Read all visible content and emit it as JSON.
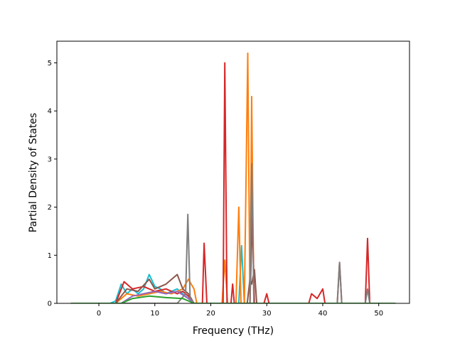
{
  "chart_data": {
    "type": "line",
    "title": "",
    "xlabel": "Frequency (THz)",
    "ylabel": "Partial Density of States",
    "xlim": [
      -7.5,
      55.5
    ],
    "ylim": [
      0,
      5.45
    ],
    "xticks": [
      0,
      10,
      20,
      30,
      40,
      50
    ],
    "yticks": [
      0,
      1,
      2,
      3,
      4,
      5
    ],
    "grid": false,
    "legend": "none",
    "colors": [
      "#1f77b4",
      "#ff7f0e",
      "#2ca02c",
      "#d62728",
      "#9467bd",
      "#8c564b",
      "#e377c2",
      "#7f7f7f",
      "#bcbd22",
      "#17becf"
    ],
    "series": [
      {
        "color": "#17becf",
        "points": [
          [
            -5,
            0
          ],
          [
            2,
            0
          ],
          [
            3,
            0.05
          ],
          [
            4,
            0.4
          ],
          [
            5,
            0.2
          ],
          [
            6,
            0.3
          ],
          [
            7,
            0.2
          ],
          [
            8,
            0.3
          ],
          [
            9,
            0.6
          ],
          [
            10,
            0.35
          ],
          [
            11,
            0.3
          ],
          [
            12,
            0.2
          ],
          [
            13,
            0.25
          ],
          [
            14,
            0.3
          ],
          [
            15,
            0.2
          ],
          [
            16,
            0.1
          ],
          [
            17,
            0
          ],
          [
            25,
            0
          ],
          [
            25.5,
            1.2
          ],
          [
            26,
            0
          ],
          [
            53,
            0
          ]
        ]
      },
      {
        "color": "#ff7f0e",
        "points": [
          [
            -5,
            0
          ],
          [
            3,
            0
          ],
          [
            5,
            0.2
          ],
          [
            7,
            0.15
          ],
          [
            9,
            0.2
          ],
          [
            11,
            0.25
          ],
          [
            13,
            0.2
          ],
          [
            15,
            0.3
          ],
          [
            16,
            0.5
          ],
          [
            17,
            0.3
          ],
          [
            17.5,
            0
          ],
          [
            22,
            0
          ],
          [
            22.5,
            0.9
          ],
          [
            23,
            0
          ],
          [
            24.5,
            0
          ],
          [
            25,
            2.0
          ],
          [
            25.4,
            0
          ],
          [
            26,
            0
          ],
          [
            26.6,
            5.2
          ],
          [
            27,
            0
          ],
          [
            27.3,
            4.3
          ],
          [
            27.7,
            0
          ],
          [
            30,
            0
          ],
          [
            53,
            0
          ]
        ]
      },
      {
        "color": "#d62728",
        "points": [
          [
            -5,
            0
          ],
          [
            3,
            0
          ],
          [
            4.5,
            0.45
          ],
          [
            6,
            0.3
          ],
          [
            8,
            0.35
          ],
          [
            10,
            0.25
          ],
          [
            12,
            0.3
          ],
          [
            14,
            0.2
          ],
          [
            15,
            0.25
          ],
          [
            16,
            0.15
          ],
          [
            17,
            0
          ],
          [
            18.5,
            0
          ],
          [
            18.8,
            1.25
          ],
          [
            19.3,
            0
          ],
          [
            22.2,
            0
          ],
          [
            22.5,
            5.0
          ],
          [
            22.9,
            0
          ],
          [
            23.6,
            0
          ],
          [
            23.9,
            0.4
          ],
          [
            24.2,
            0
          ],
          [
            27,
            0
          ],
          [
            27.4,
            1.8
          ],
          [
            27.8,
            0
          ],
          [
            29.5,
            0
          ],
          [
            30,
            0.2
          ],
          [
            30.4,
            0
          ],
          [
            37.5,
            0
          ],
          [
            38,
            0.2
          ],
          [
            39,
            0.1
          ],
          [
            40,
            0.3
          ],
          [
            40.4,
            0
          ],
          [
            42.6,
            0
          ],
          [
            43,
            0.85
          ],
          [
            43.4,
            0
          ],
          [
            47.6,
            0
          ],
          [
            48,
            1.35
          ],
          [
            48.4,
            0
          ],
          [
            53,
            0
          ]
        ]
      },
      {
        "color": "#8c564b",
        "points": [
          [
            -5,
            0
          ],
          [
            3,
            0
          ],
          [
            5,
            0.3
          ],
          [
            7,
            0.25
          ],
          [
            9,
            0.5
          ],
          [
            10,
            0.3
          ],
          [
            12,
            0.4
          ],
          [
            14,
            0.6
          ],
          [
            15,
            0.3
          ],
          [
            16,
            0.2
          ],
          [
            17,
            0
          ],
          [
            26.5,
            0
          ],
          [
            27,
            0.5
          ],
          [
            27.3,
            0.4
          ],
          [
            27.8,
            0.7
          ],
          [
            28.2,
            0
          ],
          [
            53,
            0
          ]
        ]
      },
      {
        "color": "#7f7f7f",
        "points": [
          [
            -5,
            0
          ],
          [
            14,
            0
          ],
          [
            15.5,
            0.2
          ],
          [
            15.9,
            1.85
          ],
          [
            16.3,
            0.1
          ],
          [
            17,
            0
          ],
          [
            27,
            0
          ],
          [
            27.3,
            2.9
          ],
          [
            27.7,
            0
          ],
          [
            42.6,
            0
          ],
          [
            43,
            0.85
          ],
          [
            43.4,
            0
          ],
          [
            47.6,
            0
          ],
          [
            48,
            0.3
          ],
          [
            48.4,
            0
          ],
          [
            53,
            0
          ]
        ]
      },
      {
        "color": "#9467bd",
        "points": [
          [
            -5,
            0
          ],
          [
            4,
            0
          ],
          [
            6,
            0.15
          ],
          [
            8,
            0.2
          ],
          [
            10,
            0.25
          ],
          [
            12,
            0.2
          ],
          [
            14,
            0.25
          ],
          [
            16,
            0.1
          ],
          [
            17,
            0
          ],
          [
            53,
            0
          ]
        ]
      },
      {
        "color": "#2ca02c",
        "points": [
          [
            -5,
            0
          ],
          [
            4,
            0
          ],
          [
            6,
            0.1
          ],
          [
            9,
            0.15
          ],
          [
            12,
            0.12
          ],
          [
            15,
            0.1
          ],
          [
            17,
            0
          ],
          [
            53,
            0
          ]
        ]
      }
    ]
  }
}
